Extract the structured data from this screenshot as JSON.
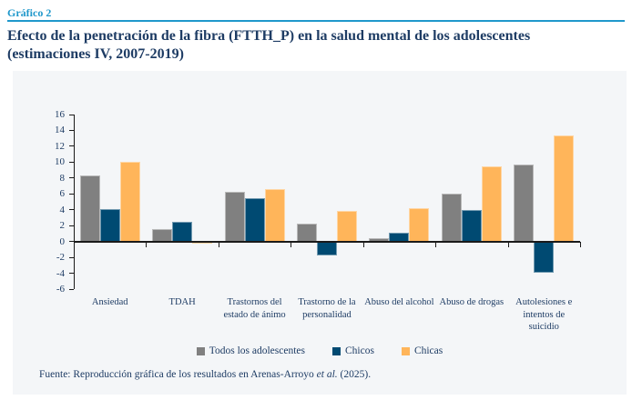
{
  "header": {
    "kicker": "Gráfico 2",
    "title": "Efecto de la penetración de la fibra (FTTH_P) en la salud mental de los adolescentes (estimaciones IV, 2007-2019)"
  },
  "colors": {
    "accent_blue": "#1f98cb",
    "navy": "#1e3c64",
    "panel_bg": "#f4f6f8",
    "axis": "#1a1a1a",
    "series_todos": "#808080",
    "series_chicos": "#004a72",
    "series_chicas": "#ffb55a"
  },
  "chart_data": {
    "type": "bar",
    "title": "Efecto de la penetración de la fibra (FTTH_P) en la salud mental de los adolescentes (estimaciones IV, 2007-2019)",
    "categories": [
      "Ansiedad",
      "TDAH",
      "Trastornos del estado de ánimo",
      "Trastorno de la personalidad",
      "Abuso del alcohol",
      "Abuso de drogas",
      "Autolesiones e intentos de suicidio"
    ],
    "series": [
      {
        "name": "Todos los adolescentes",
        "color": "#808080",
        "values": [
          8.3,
          1.6,
          6.3,
          2.3,
          0.4,
          6.0,
          9.7
        ]
      },
      {
        "name": "Chicos",
        "color": "#004a72",
        "values": [
          4.1,
          2.5,
          5.5,
          -1.8,
          1.1,
          4.0,
          -3.9
        ]
      },
      {
        "name": "Chicas",
        "color": "#ffb55a",
        "values": [
          10.0,
          -0.3,
          6.6,
          3.9,
          4.2,
          9.5,
          13.4
        ]
      }
    ],
    "xlabel": "",
    "ylabel": "",
    "ylim": [
      -6,
      16
    ],
    "ytick_step": 2,
    "grid": false,
    "legend_position": "bottom"
  },
  "source": {
    "prefix": "Fuente: Reproducción gráfica de los resultados en Arenas-Arroyo ",
    "italic": "et al.",
    "suffix": " (2025)."
  }
}
